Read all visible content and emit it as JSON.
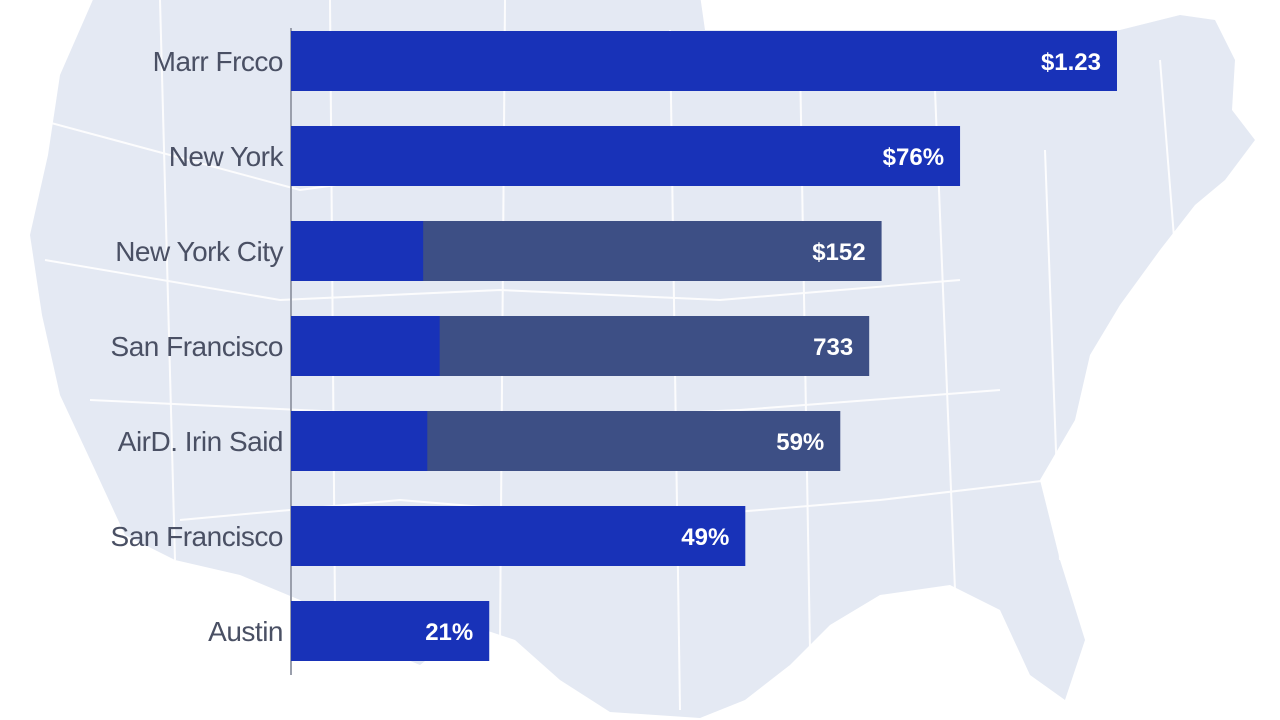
{
  "chart_data": {
    "type": "bar",
    "orientation": "horizontal",
    "title": "",
    "xlabel": "",
    "ylabel": "",
    "categories": [
      "Marr Frcco",
      "New York",
      "New York City",
      "San Francisco",
      "AirD. Irin Said",
      "San Francisco",
      "Austin"
    ],
    "values": [
      100,
      81,
      71.5,
      70,
      66.5,
      55,
      24
    ],
    "value_labels": [
      "$1.23",
      "$76%",
      "$152",
      "733",
      "59%",
      "49%",
      "21%"
    ],
    "split_values": [
      null,
      null,
      16,
      18,
      16.5,
      null,
      null
    ],
    "xlim": [
      0,
      100
    ],
    "grid": false,
    "legend": "none",
    "colors": {
      "primary": "#1832b8",
      "secondary": "#3d4f85",
      "axis": "#9a9fac",
      "label": "#4a5064",
      "map_fill": "#e4e9f3",
      "map_lines": "#ffffff"
    }
  }
}
